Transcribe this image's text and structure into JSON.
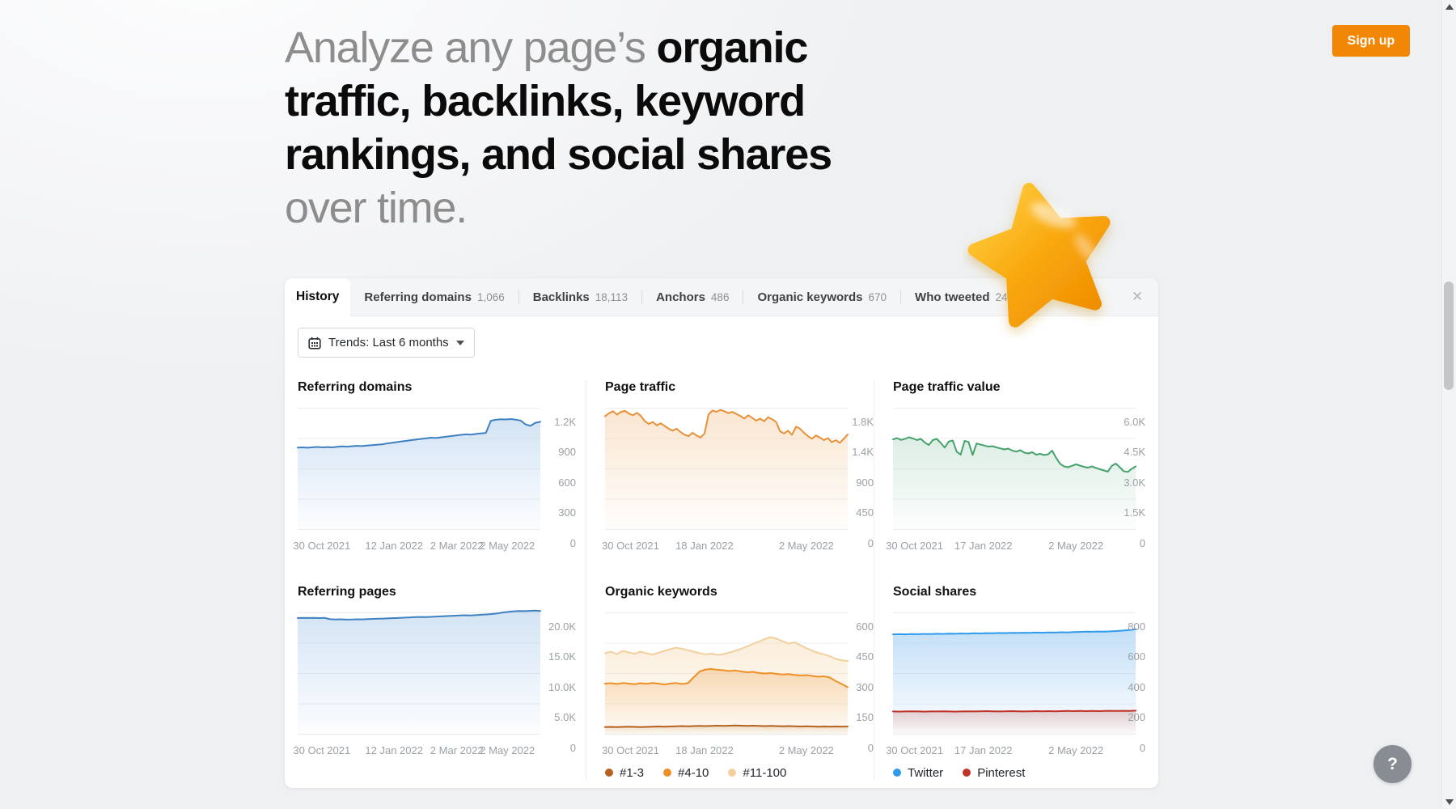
{
  "header": {
    "headline_gray_1": "Analyze any page’s ",
    "headline_bold": "organic traffic, backlinks, keyword rankings, and social shares",
    "headline_gray_2": " over time.",
    "signup_label": "Sign up",
    "signup_bg": "#f28705"
  },
  "panel": {
    "tabs": [
      {
        "label": "History",
        "count": "",
        "active": true
      },
      {
        "label": "Referring domains",
        "count": "1,066",
        "active": false
      },
      {
        "label": "Backlinks",
        "count": "18,113",
        "active": false
      },
      {
        "label": "Anchors",
        "count": "486",
        "active": false
      },
      {
        "label": "Organic keywords",
        "count": "670",
        "active": false
      },
      {
        "label": "Who tweeted",
        "count": "244",
        "active": false
      }
    ],
    "close_glyph": "✕",
    "trends_label": "Trends: Last 6 months"
  },
  "help_label": "?",
  "chart_data": [
    {
      "type": "area",
      "title": "Referring domains",
      "y_max": 1200,
      "y_labels": [
        "1.2K",
        "900",
        "600",
        "300",
        "0"
      ],
      "x_labels": [
        {
          "text": "30 Oct 2021",
          "pos": 10
        },
        {
          "text": "12 Jan 2022",
          "pos": 40
        },
        {
          "text": "2 Mar 2022",
          "pos": 66
        },
        {
          "text": "2 May 2022",
          "pos": 87
        }
      ],
      "series": [
        {
          "name": "Referring domains",
          "color": "#3f80c2",
          "fill": "#9fc3e8",
          "fill_opacity": 0.45,
          "values": [
            810,
            812,
            809,
            813,
            816,
            812,
            815,
            812,
            818,
            822,
            819,
            824,
            827,
            825,
            830,
            834,
            838,
            842,
            850,
            857,
            864,
            871,
            877,
            884,
            890,
            896,
            902,
            908,
            905,
            912,
            918,
            924,
            930,
            936,
            941,
            938,
            945,
            950,
            955,
            1075,
            1085,
            1090,
            1088,
            1092,
            1086,
            1078,
            1040,
            1025,
            1055,
            1066
          ]
        }
      ]
    },
    {
      "type": "area",
      "title": "Page traffic",
      "y_max": 1800,
      "y_labels": [
        "1.8K",
        "1.4K",
        "900",
        "450",
        "0"
      ],
      "x_labels": [
        {
          "text": "30 Oct 2021",
          "pos": 11
        },
        {
          "text": "18 Jan 2022",
          "pos": 43
        },
        {
          "text": "2 May 2022",
          "pos": 87
        }
      ],
      "series": [
        {
          "name": "Page traffic",
          "color": "#e79038",
          "fill": "#f2c18c",
          "fill_opacity": 0.4,
          "values": [
            1680,
            1725,
            1755,
            1705,
            1745,
            1760,
            1720,
            1695,
            1730,
            1685,
            1605,
            1565,
            1595,
            1545,
            1575,
            1535,
            1495,
            1465,
            1495,
            1445,
            1405,
            1385,
            1435,
            1395,
            1365,
            1425,
            1705,
            1765,
            1745,
            1775,
            1755,
            1725,
            1745,
            1715,
            1685,
            1645,
            1695,
            1655,
            1615,
            1645,
            1605,
            1665,
            1635,
            1595,
            1455,
            1425,
            1465,
            1405,
            1525,
            1495,
            1435,
            1385,
            1345,
            1395,
            1365,
            1325,
            1355,
            1295,
            1325,
            1285,
            1345,
            1410
          ]
        }
      ]
    },
    {
      "type": "area",
      "title": "Page traffic value",
      "y_max": 6000,
      "y_labels": [
        "6.0K",
        "4.5K",
        "3.0K",
        "1.5K",
        "0"
      ],
      "x_labels": [
        {
          "text": "30 Oct 2021",
          "pos": 10
        },
        {
          "text": "17 Jan 2022",
          "pos": 42
        },
        {
          "text": "2 May 2022",
          "pos": 85
        }
      ],
      "series": [
        {
          "name": "Page traffic value",
          "color": "#46a26d",
          "fill": "#a9d3bc",
          "fill_opacity": 0.4,
          "values": [
            4450,
            4520,
            4430,
            4480,
            4560,
            4500,
            4420,
            4480,
            4300,
            4180,
            4420,
            4480,
            4280,
            4050,
            4350,
            4400,
            3850,
            3700,
            4380,
            4330,
            3680,
            4250,
            4200,
            4150,
            4100,
            4120,
            4060,
            4010,
            3960,
            4000,
            3900,
            3850,
            3920,
            3800,
            3760,
            3820,
            3700,
            3740,
            3680,
            3720,
            3900,
            3550,
            3250,
            3120,
            3080,
            3150,
            3220,
            3160,
            3100,
            3060,
            3120,
            3050,
            2980,
            2920,
            2860,
            3150,
            3260,
            3080,
            2880,
            2850,
            3000,
            3120
          ]
        }
      ]
    },
    {
      "type": "area",
      "title": "Referring pages",
      "y_max": 20000,
      "y_labels": [
        "20.0K",
        "15.0K",
        "10.0K",
        "5.0K",
        "0"
      ],
      "x_labels": [
        {
          "text": "30 Oct 2021",
          "pos": 10
        },
        {
          "text": "12 Jan 2022",
          "pos": 40
        },
        {
          "text": "2 Mar 2022",
          "pos": 66
        },
        {
          "text": "2 May 2022",
          "pos": 87
        }
      ],
      "series": [
        {
          "name": "Referring pages",
          "color": "#3f80c2",
          "fill": "#9fc3e8",
          "fill_opacity": 0.45,
          "values": [
            19150,
            19180,
            19150,
            19170,
            19140,
            19160,
            18950,
            18900,
            18930,
            18880,
            18900,
            18940,
            18920,
            18960,
            19000,
            19030,
            19060,
            19100,
            19140,
            19170,
            19210,
            19250,
            19290,
            19320,
            19290,
            19350,
            19400,
            19440,
            19480,
            19520,
            19560,
            19600,
            19560,
            19620,
            19680,
            19740,
            19800,
            19900,
            20050,
            20150,
            20250,
            20300,
            20280,
            20320,
            20380,
            20300
          ]
        }
      ]
    },
    {
      "type": "area",
      "title": "Organic keywords",
      "y_max": 600,
      "y_labels": [
        "600",
        "450",
        "300",
        "150",
        "0"
      ],
      "x_labels": [
        {
          "text": "30 Oct 2021",
          "pos": 11
        },
        {
          "text": "18 Jan 2022",
          "pos": 43
        },
        {
          "text": "2 May 2022",
          "pos": 87
        }
      ],
      "series": [
        {
          "name": "#1-3",
          "color": "#b5621f",
          "fill": "#d8a977",
          "fill_opacity": 0.35,
          "values": [
            35,
            36,
            35,
            36,
            37,
            36,
            35,
            36,
            37,
            38,
            37,
            38,
            39,
            40,
            39,
            40,
            41,
            40,
            41,
            42,
            41,
            42,
            43,
            42,
            41,
            42,
            41,
            40,
            41,
            40,
            39,
            40,
            39,
            38,
            39,
            38,
            37,
            38,
            37,
            38,
            37,
            38
          ]
        },
        {
          "name": "#4-10",
          "color": "#ee9026",
          "fill": "#f3bf82",
          "fill_opacity": 0.5,
          "values": [
            250,
            252,
            248,
            253,
            250,
            247,
            252,
            249,
            253,
            250,
            246,
            250,
            253,
            248,
            252,
            282,
            310,
            320,
            322,
            318,
            316,
            312,
            315,
            310,
            306,
            308,
            303,
            300,
            302,
            298,
            295,
            297,
            293,
            290,
            292,
            288,
            284,
            286,
            280,
            262,
            248,
            232
          ]
        },
        {
          "name": "#11-100",
          "color": "#f2cf9d",
          "fill": "#f7dfbb",
          "fill_opacity": 0.55,
          "values": [
            400,
            408,
            396,
            412,
            404,
            398,
            408,
            400,
            394,
            402,
            412,
            420,
            428,
            422,
            415,
            408,
            400,
            395,
            398,
            392,
            396,
            404,
            412,
            422,
            434,
            446,
            458,
            470,
            480,
            472,
            460,
            448,
            455,
            440,
            425,
            412,
            402,
            395,
            385,
            372,
            365,
            362
          ]
        }
      ]
    },
    {
      "type": "area",
      "title": "Social shares",
      "y_max": 800,
      "y_labels": [
        "800",
        "600",
        "400",
        "200",
        "0"
      ],
      "x_labels": [
        {
          "text": "30 Oct 2021",
          "pos": 10
        },
        {
          "text": "17 Jan 2022",
          "pos": 42
        },
        {
          "text": "2 May 2022",
          "pos": 85
        }
      ],
      "series": [
        {
          "name": "Twitter",
          "color": "#2f9bec",
          "fill": "#a9d1f4",
          "fill_opacity": 0.7,
          "values": [
            658,
            659,
            658,
            660,
            659,
            661,
            660,
            662,
            661,
            663,
            662,
            664,
            663,
            665,
            664,
            666,
            665,
            667,
            666,
            668,
            667,
            669,
            668,
            670,
            669,
            671,
            670,
            672,
            671,
            673,
            674,
            676,
            675,
            677,
            676,
            678,
            680,
            683,
            686,
            692
          ]
        },
        {
          "name": "Pinterest",
          "color": "#c03328",
          "fill": "#d89d96",
          "fill_opacity": 0.5,
          "values": [
            150,
            149,
            150,
            151,
            150,
            149,
            150,
            150,
            151,
            150,
            149,
            150,
            151,
            150,
            151,
            152,
            151,
            150,
            151,
            152,
            151,
            150,
            151,
            152,
            151,
            152,
            151,
            152,
            153,
            152,
            153,
            152,
            153,
            152,
            153,
            154,
            153,
            154,
            153,
            155
          ]
        }
      ]
    }
  ]
}
